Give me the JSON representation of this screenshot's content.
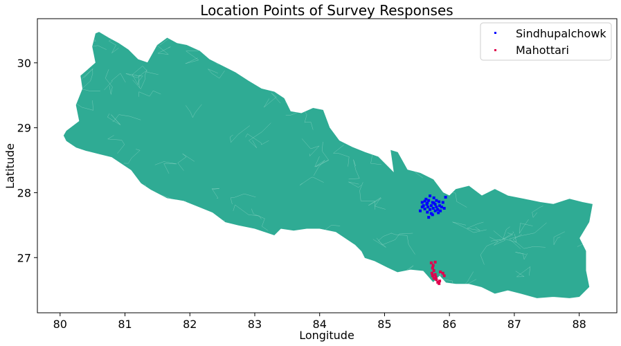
{
  "chart_data": {
    "type": "scatter",
    "title": "Location Points of Survey Responses",
    "xlabel": "Longitude",
    "ylabel": "Latitude",
    "xlim": [
      79.65,
      88.58
    ],
    "ylim": [
      26.15,
      30.68
    ],
    "xticks": [
      80,
      81,
      82,
      83,
      84,
      85,
      86,
      87,
      88
    ],
    "yticks": [
      27,
      28,
      29,
      30
    ],
    "grid": false,
    "legend_position": "top-right",
    "map_fill_color": "#2fab94",
    "boundary_color": "#9fdccd",
    "outline": [
      [
        80.06,
        28.88
      ],
      [
        80.1,
        28.95
      ],
      [
        80.3,
        29.1
      ],
      [
        80.25,
        29.35
      ],
      [
        80.35,
        29.6
      ],
      [
        80.32,
        29.8
      ],
      [
        80.55,
        30.0
      ],
      [
        80.5,
        30.25
      ],
      [
        80.55,
        30.45
      ],
      [
        80.6,
        30.47
      ],
      [
        80.75,
        30.38
      ],
      [
        80.9,
        30.3
      ],
      [
        81.05,
        30.2
      ],
      [
        81.2,
        30.05
      ],
      [
        81.35,
        30.0
      ],
      [
        81.5,
        30.27
      ],
      [
        81.65,
        30.38
      ],
      [
        81.8,
        30.3
      ],
      [
        81.95,
        30.27
      ],
      [
        82.15,
        30.18
      ],
      [
        82.3,
        30.05
      ],
      [
        82.5,
        29.95
      ],
      [
        82.7,
        29.85
      ],
      [
        82.9,
        29.72
      ],
      [
        83.1,
        29.6
      ],
      [
        83.3,
        29.55
      ],
      [
        83.45,
        29.45
      ],
      [
        83.55,
        29.25
      ],
      [
        83.72,
        29.22
      ],
      [
        83.9,
        29.3
      ],
      [
        84.05,
        29.27
      ],
      [
        84.15,
        29.0
      ],
      [
        84.3,
        28.8
      ],
      [
        84.5,
        28.7
      ],
      [
        84.7,
        28.62
      ],
      [
        84.9,
        28.55
      ],
      [
        85.0,
        28.45
      ],
      [
        85.15,
        28.3
      ],
      [
        85.1,
        28.65
      ],
      [
        85.2,
        28.62
      ],
      [
        85.35,
        28.35
      ],
      [
        85.55,
        28.3
      ],
      [
        85.75,
        28.2
      ],
      [
        85.9,
        28.0
      ],
      [
        86.0,
        27.95
      ],
      [
        86.1,
        28.05
      ],
      [
        86.3,
        28.1
      ],
      [
        86.5,
        27.95
      ],
      [
        86.7,
        28.05
      ],
      [
        86.9,
        27.95
      ],
      [
        87.15,
        27.9
      ],
      [
        87.4,
        27.85
      ],
      [
        87.6,
        27.82
      ],
      [
        87.85,
        27.9
      ],
      [
        88.05,
        27.85
      ],
      [
        88.2,
        27.82
      ],
      [
        88.15,
        27.55
      ],
      [
        88.0,
        27.3
      ],
      [
        88.1,
        27.1
      ],
      [
        88.1,
        26.8
      ],
      [
        88.15,
        26.55
      ],
      [
        88.0,
        26.4
      ],
      [
        87.85,
        26.38
      ],
      [
        87.6,
        26.4
      ],
      [
        87.35,
        26.38
      ],
      [
        87.1,
        26.45
      ],
      [
        86.9,
        26.5
      ],
      [
        86.7,
        26.45
      ],
      [
        86.5,
        26.55
      ],
      [
        86.3,
        26.6
      ],
      [
        86.1,
        26.6
      ],
      [
        85.95,
        26.62
      ],
      [
        85.85,
        26.73
      ],
      [
        85.75,
        26.63
      ],
      [
        85.6,
        26.8
      ],
      [
        85.4,
        26.82
      ],
      [
        85.2,
        26.78
      ],
      [
        85.05,
        26.85
      ],
      [
        84.85,
        26.95
      ],
      [
        84.7,
        27.0
      ],
      [
        84.65,
        27.1
      ],
      [
        84.55,
        27.2
      ],
      [
        84.4,
        27.3
      ],
      [
        84.25,
        27.4
      ],
      [
        84.0,
        27.45
      ],
      [
        83.8,
        27.45
      ],
      [
        83.6,
        27.42
      ],
      [
        83.4,
        27.45
      ],
      [
        83.3,
        27.35
      ],
      [
        83.0,
        27.45
      ],
      [
        82.75,
        27.5
      ],
      [
        82.55,
        27.55
      ],
      [
        82.35,
        27.7
      ],
      [
        82.1,
        27.8
      ],
      [
        81.9,
        27.88
      ],
      [
        81.65,
        27.92
      ],
      [
        81.4,
        28.05
      ],
      [
        81.25,
        28.15
      ],
      [
        81.1,
        28.35
      ],
      [
        80.95,
        28.45
      ],
      [
        80.8,
        28.55
      ],
      [
        80.6,
        28.6
      ],
      [
        80.4,
        28.65
      ],
      [
        80.25,
        28.7
      ],
      [
        80.1,
        28.8
      ]
    ],
    "series": [
      {
        "name": "Sindhupalchowk",
        "color": "#0000ff",
        "points": [
          [
            85.55,
            27.72
          ],
          [
            85.58,
            27.85
          ],
          [
            85.6,
            27.8
          ],
          [
            85.62,
            27.75
          ],
          [
            85.64,
            27.9
          ],
          [
            85.65,
            27.82
          ],
          [
            85.66,
            27.7
          ],
          [
            85.67,
            27.78
          ],
          [
            85.68,
            27.88
          ],
          [
            85.7,
            27.74
          ],
          [
            85.7,
            27.95
          ],
          [
            85.72,
            27.8
          ],
          [
            85.72,
            27.68
          ],
          [
            85.74,
            27.85
          ],
          [
            85.75,
            27.76
          ],
          [
            85.76,
            27.92
          ],
          [
            85.78,
            27.72
          ],
          [
            85.78,
            27.82
          ],
          [
            85.8,
            27.88
          ],
          [
            85.8,
            27.78
          ],
          [
            85.82,
            27.74
          ],
          [
            85.84,
            27.86
          ],
          [
            85.85,
            27.8
          ],
          [
            85.86,
            27.72
          ],
          [
            85.88,
            27.78
          ],
          [
            85.9,
            27.85
          ],
          [
            85.92,
            27.76
          ],
          [
            85.94,
            27.93
          ],
          [
            85.62,
            27.87
          ],
          [
            85.68,
            27.62
          ],
          [
            85.74,
            27.66
          ],
          [
            85.58,
            27.78
          ],
          [
            85.66,
            27.84
          ],
          [
            85.76,
            27.84
          ],
          [
            85.83,
            27.69
          ]
        ]
      },
      {
        "name": "Mahottari",
        "color": "#e0004d",
        "points": [
          [
            85.72,
            26.92
          ],
          [
            85.75,
            26.88
          ],
          [
            85.78,
            26.93
          ],
          [
            85.74,
            26.84
          ],
          [
            85.76,
            26.8
          ],
          [
            85.78,
            26.74
          ],
          [
            85.74,
            26.72
          ],
          [
            85.76,
            26.68
          ],
          [
            85.8,
            26.66
          ],
          [
            85.82,
            26.62
          ],
          [
            85.84,
            26.6
          ],
          [
            85.86,
            26.78
          ],
          [
            85.9,
            26.76
          ],
          [
            85.92,
            26.72
          ],
          [
            85.73,
            26.76
          ],
          [
            85.79,
            26.7
          ],
          [
            85.85,
            26.64
          ]
        ]
      }
    ]
  }
}
